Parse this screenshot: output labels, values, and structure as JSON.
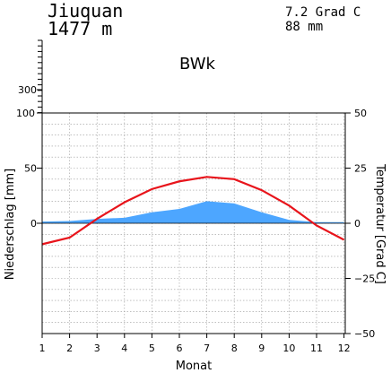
{
  "header": {
    "station": "Jiuquan",
    "elevation": "1477 m",
    "mean_temp": "7.2 Grad C",
    "annual_precip": "88 mm",
    "climate_class": "BWk"
  },
  "colors": {
    "precip_fill": "#4da6ff",
    "temp_line": "#e8141b",
    "grid": "#999999"
  },
  "chart_data": {
    "type": "line",
    "x": [
      1,
      2,
      3,
      4,
      5,
      6,
      7,
      8,
      9,
      10,
      11,
      12
    ],
    "xlabel": "Monat",
    "ylabel_left": "Niederschlag [mm]",
    "ylabel_right": "Temperatur [Grad C]",
    "left_ticks": [
      "0",
      "50",
      "100",
      "300"
    ],
    "right_ticks": [
      "−50",
      "−25",
      "0",
      "25",
      "50"
    ],
    "precip_ylim": [
      0,
      100
    ],
    "temp_ylim": [
      -50,
      50
    ],
    "grid": true,
    "series": [
      {
        "kind": "area",
        "axis": "left",
        "values": [
          1.5,
          2,
          4,
          5,
          10,
          13,
          20,
          18,
          10,
          3,
          1,
          1
        ]
      },
      {
        "kind": "line",
        "axis": "right",
        "values": [
          -9.5,
          -6.5,
          2,
          9.5,
          15.5,
          19,
          21,
          20,
          15,
          8,
          -1,
          -7.5
        ]
      }
    ]
  }
}
